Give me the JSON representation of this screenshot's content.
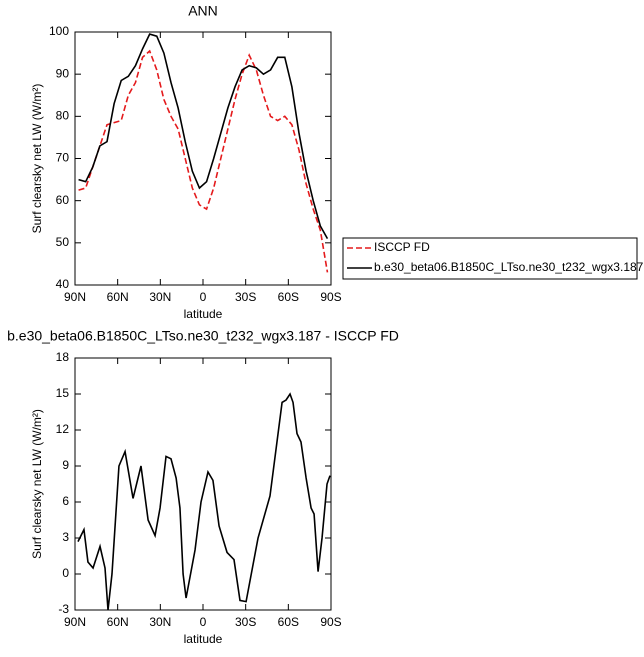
{
  "chart_data": [
    {
      "type": "line",
      "title": "ANN",
      "xlabel": "latitude",
      "ylabel": "Surf clearsky net LW (W/m²)",
      "x": [
        87.5,
        82.5,
        77.5,
        72.5,
        67.5,
        62.5,
        57.5,
        52.5,
        47.5,
        42.5,
        37.5,
        32.5,
        27.5,
        22.5,
        17.5,
        12.5,
        7.5,
        2.5,
        -2.5,
        -7.5,
        -12.5,
        -17.5,
        -22.5,
        -27.5,
        -32.5,
        -37.5,
        -42.5,
        -47.5,
        -52.5,
        -57.5,
        -62.5,
        -67.5,
        -72.5,
        -77.5,
        -82.5,
        -87.5
      ],
      "series": [
        {
          "name": "ISCCP FD",
          "color": "#e41a1c",
          "linestyle": "dashed",
          "values": [
            62.5,
            63,
            68,
            73,
            78,
            78.5,
            79,
            85,
            88,
            94,
            95.5,
            91,
            84,
            80,
            77,
            70,
            63,
            59,
            58,
            63,
            70,
            77,
            84,
            90,
            94.5,
            91,
            85,
            80,
            79,
            80,
            78,
            72,
            64,
            58,
            53,
            43
          ]
        },
        {
          "name": "b.e30_beta06.B1850C_LTso.ne30_t232_wgx3.187",
          "color": "#000000",
          "linestyle": "solid",
          "values": [
            65,
            64.5,
            68,
            73,
            74,
            83,
            88.5,
            89.5,
            92,
            96,
            99.5,
            99,
            95,
            88,
            82,
            74,
            67,
            63,
            64.5,
            70,
            76,
            82,
            87,
            91,
            92,
            91.5,
            90,
            91,
            94,
            94,
            87,
            76,
            67,
            60,
            54,
            51
          ]
        }
      ],
      "xlim": [
        90,
        -90
      ],
      "xticks": [
        {
          "value": 90,
          "label": "90N"
        },
        {
          "value": 60,
          "label": "60N"
        },
        {
          "value": 30,
          "label": "30N"
        },
        0,
        {
          "value": -30,
          "label": "30S"
        },
        {
          "value": -60,
          "label": "60S"
        },
        {
          "value": -90,
          "label": "90S"
        }
      ],
      "ylim": [
        40,
        100
      ],
      "yticks": [
        40,
        50,
        60,
        70,
        80,
        90,
        100
      ],
      "legend": "right"
    },
    {
      "type": "line",
      "title": "b.e30_beta06.B1850C_LTso.ne30_t232_wgx3.187 - ISCCP FD",
      "xlabel": "latitude",
      "ylabel": "Surf clearsky net LW (W/m²)",
      "x": [
        87.9,
        83.7,
        80.9,
        77.3,
        72.4,
        68.9,
        66.8,
        64,
        59.1,
        54.8,
        49.2,
        43.6,
        38.6,
        33.7,
        30.2,
        26,
        22.5,
        18.9,
        16.2,
        14,
        11.9,
        5.6,
        1.4,
        -3.5,
        -7,
        -11.3,
        -16.9,
        -21.8,
        -26,
        -30.3,
        -38.7,
        -47.1,
        -55.6,
        -58.4,
        -61.2,
        -63.3,
        -66.1,
        -68.9,
        -72.5,
        -76,
        -78.1,
        -80.9,
        -83.7,
        -87.2,
        -89.3
      ],
      "series": [
        {
          "name": null,
          "color": "#000000",
          "linestyle": "solid",
          "values": [
            2.7,
            3.7,
            1,
            0.5,
            2.3,
            0.5,
            -3,
            0,
            9,
            10.2,
            6.3,
            9,
            4.5,
            3.2,
            5.5,
            9.8,
            9.6,
            8,
            5.5,
            0,
            -2,
            2,
            6,
            8.5,
            7.8,
            4,
            1.8,
            1.2,
            -2.2,
            -2.3,
            3,
            6.5,
            14.3,
            14.5,
            15,
            14.3,
            11.7,
            11,
            8,
            5.5,
            5,
            0.2,
            3,
            7.5,
            8.2
          ]
        }
      ],
      "xlim": [
        90,
        -90
      ],
      "xticks": [
        {
          "value": 90,
          "label": "90N"
        },
        {
          "value": 60,
          "label": "60N"
        },
        {
          "value": 30,
          "label": "30N"
        },
        0,
        {
          "value": -30,
          "label": "30S"
        },
        {
          "value": -60,
          "label": "60S"
        },
        {
          "value": -90,
          "label": "90S"
        }
      ],
      "ylim": [
        -3,
        18
      ],
      "yticks": [
        -3,
        0,
        3,
        6,
        9,
        12,
        15,
        18
      ]
    }
  ]
}
